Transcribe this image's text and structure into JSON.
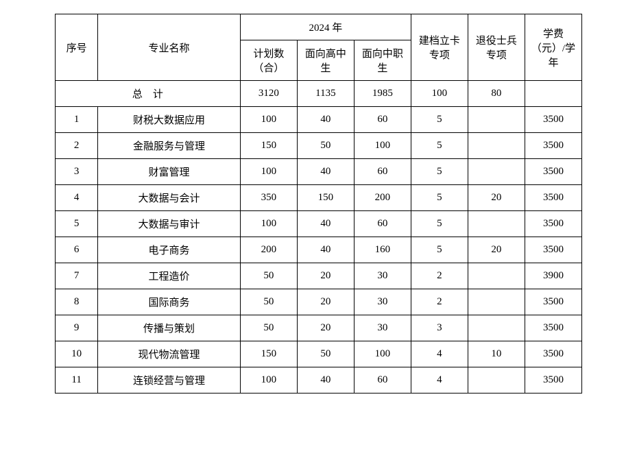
{
  "header": {
    "seq": "序号",
    "name": "专业名称",
    "year_group": "2024 年",
    "plan": "计划数（合）",
    "hs": "面向高中生",
    "vs": "面向中职生",
    "jdlk": "建档立卡专项",
    "tysb": "退役士兵专项",
    "fee": "学费（元）/学年",
    "total_label": "总　计"
  },
  "totals": {
    "plan": "3120",
    "hs": "1135",
    "vs": "1985",
    "jdlk": "100",
    "tysb": "80",
    "fee": ""
  },
  "rows": [
    {
      "seq": "1",
      "name": "财税大数据应用",
      "plan": "100",
      "hs": "40",
      "vs": "60",
      "jdlk": "5",
      "tysb": "",
      "fee": "3500"
    },
    {
      "seq": "2",
      "name": "金融服务与管理",
      "plan": "150",
      "hs": "50",
      "vs": "100",
      "jdlk": "5",
      "tysb": "",
      "fee": "3500"
    },
    {
      "seq": "3",
      "name": "财富管理",
      "plan": "100",
      "hs": "40",
      "vs": "60",
      "jdlk": "5",
      "tysb": "",
      "fee": "3500"
    },
    {
      "seq": "4",
      "name": "大数据与会计",
      "plan": "350",
      "hs": "150",
      "vs": "200",
      "jdlk": "5",
      "tysb": "20",
      "fee": "3500"
    },
    {
      "seq": "5",
      "name": "大数据与审计",
      "plan": "100",
      "hs": "40",
      "vs": "60",
      "jdlk": "5",
      "tysb": "",
      "fee": "3500"
    },
    {
      "seq": "6",
      "name": "电子商务",
      "plan": "200",
      "hs": "40",
      "vs": "160",
      "jdlk": "5",
      "tysb": "20",
      "fee": "3500"
    },
    {
      "seq": "7",
      "name": "工程造价",
      "plan": "50",
      "hs": "20",
      "vs": "30",
      "jdlk": "2",
      "tysb": "",
      "fee": "3900"
    },
    {
      "seq": "8",
      "name": "国际商务",
      "plan": "50",
      "hs": "20",
      "vs": "30",
      "jdlk": "2",
      "tysb": "",
      "fee": "3500"
    },
    {
      "seq": "9",
      "name": "传播与策划",
      "plan": "50",
      "hs": "20",
      "vs": "30",
      "jdlk": "3",
      "tysb": "",
      "fee": "3500"
    },
    {
      "seq": "10",
      "name": "现代物流管理",
      "plan": "150",
      "hs": "50",
      "vs": "100",
      "jdlk": "4",
      "tysb": "10",
      "fee": "3500"
    },
    {
      "seq": "11",
      "name": "连锁经营与管理",
      "plan": "100",
      "hs": "40",
      "vs": "60",
      "jdlk": "4",
      "tysb": "",
      "fee": "3500"
    }
  ]
}
